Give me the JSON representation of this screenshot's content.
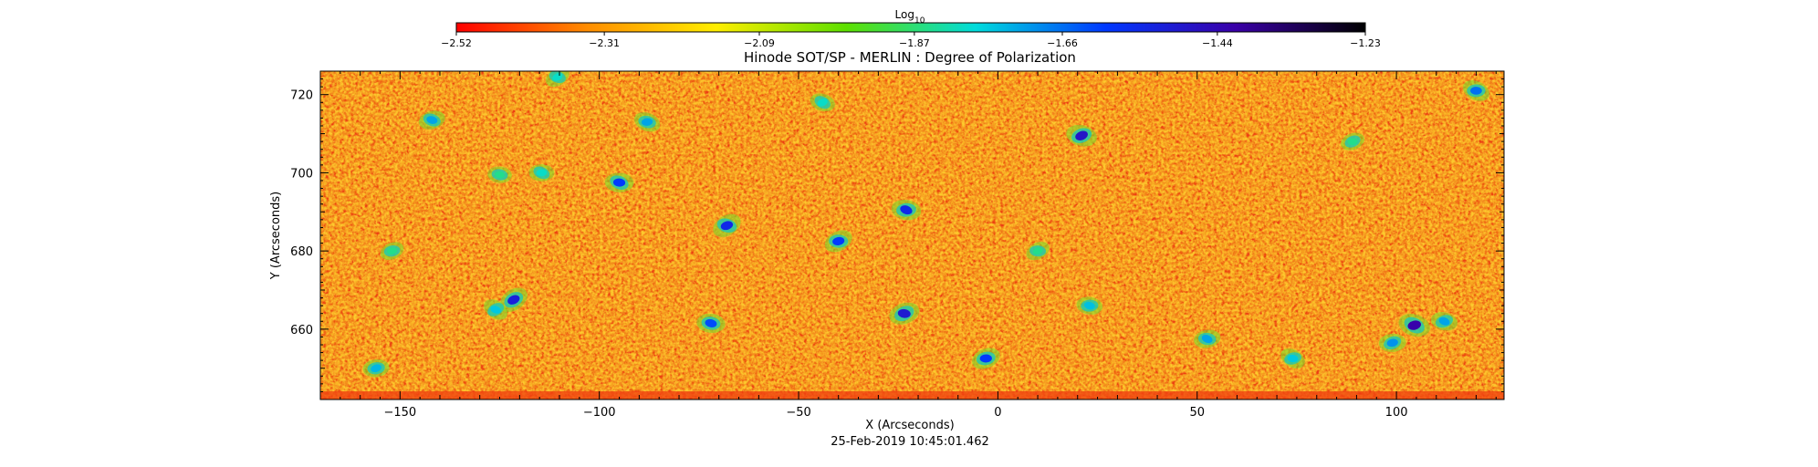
{
  "chart_data": {
    "type": "heatmap",
    "title": "Hinode SOT/SP - MERLIN : Degree of Polarization",
    "xlabel": "X (Arcseconds)",
    "ylabel": "Y (Arcseconds)",
    "timestamp": "25-Feb-2019 10:45:01.462",
    "xlim": [
      -170,
      127
    ],
    "ylim": [
      642,
      726
    ],
    "xticks": [
      -150,
      -100,
      -50,
      0,
      50,
      100
    ],
    "yticks": [
      660,
      680,
      700,
      720
    ],
    "x_tick_labels": [
      "−150",
      "−100",
      "−50",
      "0",
      "50",
      "100"
    ],
    "y_tick_labels": [
      "660",
      "680",
      "700",
      "720"
    ],
    "grid": false,
    "colorbar": {
      "label": "Log",
      "label_subscript": "10",
      "placement": "top",
      "range": [
        -2.52,
        -1.23
      ],
      "ticks": [
        -2.52,
        -2.31,
        -2.09,
        -1.87,
        -1.66,
        -1.44,
        -1.23
      ],
      "tick_labels": [
        "−2.52",
        "−2.31",
        "−2.09",
        "−1.87",
        "−1.66",
        "−1.44",
        "−1.23"
      ],
      "colors": [
        "#ff0000",
        "#ff8c00",
        "#ffee00",
        "#5de000",
        "#00dcdc",
        "#0038ff",
        "#3a00a8",
        "#000000"
      ]
    },
    "field_colors": {
      "background_mean": "#f6a524",
      "low": "#ec3a12",
      "mid": "#ffd532",
      "high_green": "#78dc2a",
      "high_cyan": "#1ec8b4",
      "peak_blue": "#1a3ad2"
    },
    "background_level": -2.38,
    "features": [
      {
        "x": -121.5,
        "y": 667.5,
        "value": -1.52
      },
      {
        "x": -95,
        "y": 697.5,
        "value": -1.6
      },
      {
        "x": -68,
        "y": 686.5,
        "value": -1.55
      },
      {
        "x": -72,
        "y": 661.5,
        "value": -1.62
      },
      {
        "x": -40,
        "y": 682.5,
        "value": -1.6
      },
      {
        "x": -23,
        "y": 690.5,
        "value": -1.55
      },
      {
        "x": -3,
        "y": 652.5,
        "value": -1.6
      },
      {
        "x": 21,
        "y": 709.5,
        "value": -1.48
      },
      {
        "x": -23.5,
        "y": 664,
        "value": -1.5
      },
      {
        "x": 104.5,
        "y": 661,
        "value": -1.42
      },
      {
        "x": -142,
        "y": 713.5,
        "value": -1.72
      },
      {
        "x": -88,
        "y": 713,
        "value": -1.72
      },
      {
        "x": 52.5,
        "y": 657.5,
        "value": -1.72
      },
      {
        "x": 120,
        "y": 721,
        "value": -1.66
      },
      {
        "x": -156,
        "y": 650,
        "value": -1.74
      },
      {
        "x": 74,
        "y": 652.5,
        "value": -1.76
      },
      {
        "x": 99,
        "y": 656.5,
        "value": -1.7
      },
      {
        "x": -126,
        "y": 665,
        "value": -1.76
      },
      {
        "x": -114.5,
        "y": 700,
        "value": -1.8
      },
      {
        "x": -110.5,
        "y": 724.5,
        "value": -1.8
      },
      {
        "x": -125,
        "y": 699.5,
        "value": -1.85
      },
      {
        "x": 10,
        "y": 680,
        "value": -1.85
      },
      {
        "x": 23,
        "y": 666,
        "value": -1.75
      },
      {
        "x": -152,
        "y": 680,
        "value": -1.85
      },
      {
        "x": 112,
        "y": 662,
        "value": -1.72
      },
      {
        "x": 89,
        "y": 708,
        "value": -1.85
      },
      {
        "x": -44,
        "y": 718,
        "value": -1.8
      }
    ]
  }
}
